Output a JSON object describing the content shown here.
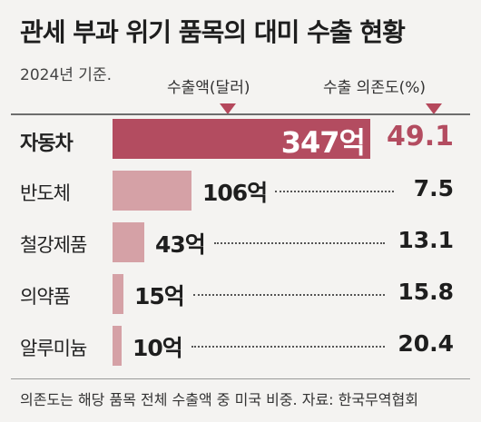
{
  "title": "관세 부과 위기 품목의 대미 수출 현황",
  "subtitle": "2024년 기준.",
  "legend": {
    "export_label": "수출액(달러)",
    "dependency_label": "수출 의존도(%)"
  },
  "note": "의존도는 해당 품목 전체 수출액 중 미국 비중.  자료: 한국무역협회",
  "colors": {
    "highlight": "#b34c60",
    "bar": "#d5a1a6",
    "background": "#f4f3f1"
  },
  "chart_data": {
    "type": "bar",
    "orientation": "horizontal",
    "categories": [
      "자동차",
      "반도체",
      "철강제품",
      "의약품",
      "알루미늄"
    ],
    "series": [
      {
        "name": "수출액(달러)",
        "values": [
          347,
          106,
          43,
          15,
          10
        ],
        "labels": [
          "347억",
          "106억",
          "43억",
          "15억",
          "10억"
        ]
      },
      {
        "name": "수출 의존도(%)",
        "values": [
          49.1,
          7.5,
          13.1,
          15.8,
          20.4
        ],
        "labels": [
          "49.1",
          "7.5",
          "13.1",
          "15.8",
          "20.4"
        ]
      }
    ],
    "highlight_index": 0
  }
}
